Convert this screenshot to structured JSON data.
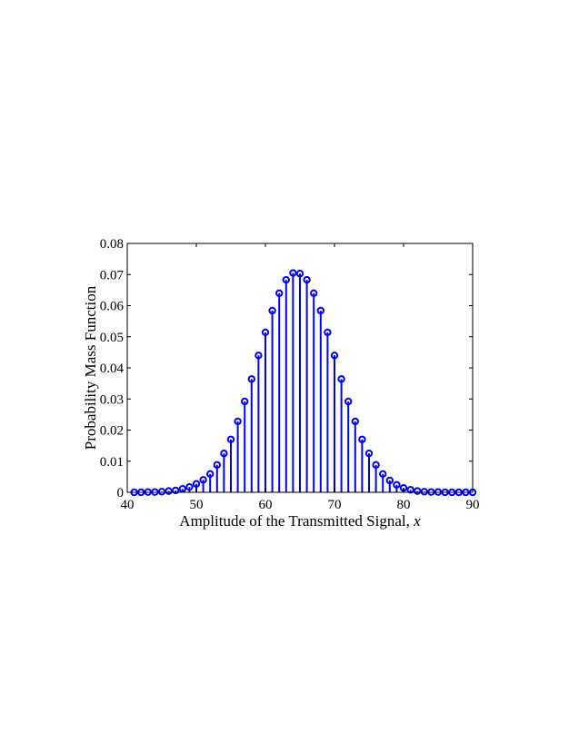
{
  "chart_data": {
    "type": "stem",
    "xlabel": "Amplitude of the Transmitted Signal, ",
    "xlabel_var": "x",
    "ylabel": "Probability Mass Function",
    "xlim": [
      40,
      90
    ],
    "ylim": [
      0,
      0.08
    ],
    "xticks": [
      40,
      50,
      60,
      70,
      80,
      90
    ],
    "xtick_labels": [
      "40",
      "50",
      "60",
      "70",
      "80",
      "90"
    ],
    "yticks": [
      0,
      0.01,
      0.02,
      0.03,
      0.04,
      0.05,
      0.06,
      0.07,
      0.08
    ],
    "ytick_labels": [
      "0",
      "0.01",
      "0.02",
      "0.03",
      "0.04",
      "0.05",
      "0.06",
      "0.07",
      "0.08"
    ],
    "grid": false,
    "marker": "circle",
    "color": "#0000ff",
    "x": [
      41,
      42,
      43,
      44,
      45,
      46,
      47,
      48,
      49,
      50,
      51,
      52,
      53,
      54,
      55,
      56,
      57,
      58,
      59,
      60,
      61,
      62,
      63,
      64,
      65,
      66,
      67,
      68,
      69,
      70,
      71,
      72,
      73,
      74,
      75,
      76,
      77,
      78,
      79,
      80,
      81,
      82,
      83,
      84,
      85,
      86,
      87,
      88,
      89,
      90
    ],
    "y": [
      0.0,
      0.0,
      0.0001,
      0.0001,
      0.0002,
      0.0004,
      0.0006,
      0.0011,
      0.0017,
      0.0027,
      0.004,
      0.0059,
      0.0088,
      0.0125,
      0.017,
      0.0228,
      0.0292,
      0.0364,
      0.044,
      0.0514,
      0.0584,
      0.064,
      0.0683,
      0.0705,
      0.0703,
      0.0683,
      0.064,
      0.0584,
      0.0514,
      0.044,
      0.0364,
      0.0292,
      0.0228,
      0.017,
      0.0125,
      0.0088,
      0.0059,
      0.0038,
      0.0024,
      0.0014,
      0.0008,
      0.0004,
      0.0002,
      0.0001,
      0.0001,
      0.0,
      0.0,
      0.0,
      0.0,
      0.0
    ]
  }
}
